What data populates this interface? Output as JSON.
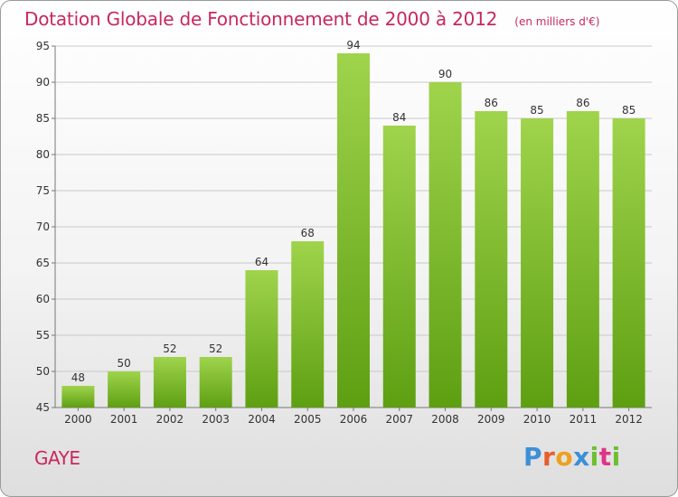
{
  "header": {
    "title": "Dotation Globale de Fonctionnement de 2000 à 2012",
    "subtitle": "(en milliers d'€)"
  },
  "footer": {
    "commune": "GAYE",
    "logo_text": "Proxiti",
    "logo_letters": [
      "P",
      "r",
      "o",
      "x",
      "i",
      "t",
      "i"
    ]
  },
  "colors": {
    "title": "#c8285c",
    "bar_top": "#9fd44c",
    "bar_bottom": "#5e9f12",
    "grid": "#c9c9c9",
    "axis_text": "#333333",
    "logo_letters": [
      "#3d8fd6",
      "#e85c2a",
      "#f0a01e",
      "#3d8fd6",
      "#6dbf2f",
      "#e0338a",
      "#6dbf2f"
    ]
  },
  "chart_data": {
    "type": "bar",
    "categories": [
      "2000",
      "2001",
      "2002",
      "2003",
      "2004",
      "2005",
      "2006",
      "2007",
      "2008",
      "2009",
      "2010",
      "2011",
      "2012"
    ],
    "values": [
      48,
      50,
      52,
      52,
      64,
      68,
      94,
      84,
      90,
      86,
      85,
      86,
      85
    ],
    "value_labels": [
      "48",
      "50",
      "52",
      "52",
      "64",
      "68",
      "94",
      "84",
      "90",
      "86",
      "85",
      "86",
      "85"
    ],
    "title": "Dotation Globale de Fonctionnement de 2000 à 2012",
    "subtitle": "(en milliers d'€)",
    "xlabel": "",
    "ylabel": "",
    "ylim": [
      45,
      95
    ],
    "yticks": [
      45,
      50,
      55,
      60,
      65,
      70,
      75,
      80,
      85,
      90,
      95
    ],
    "grid": true,
    "legend": "none"
  }
}
